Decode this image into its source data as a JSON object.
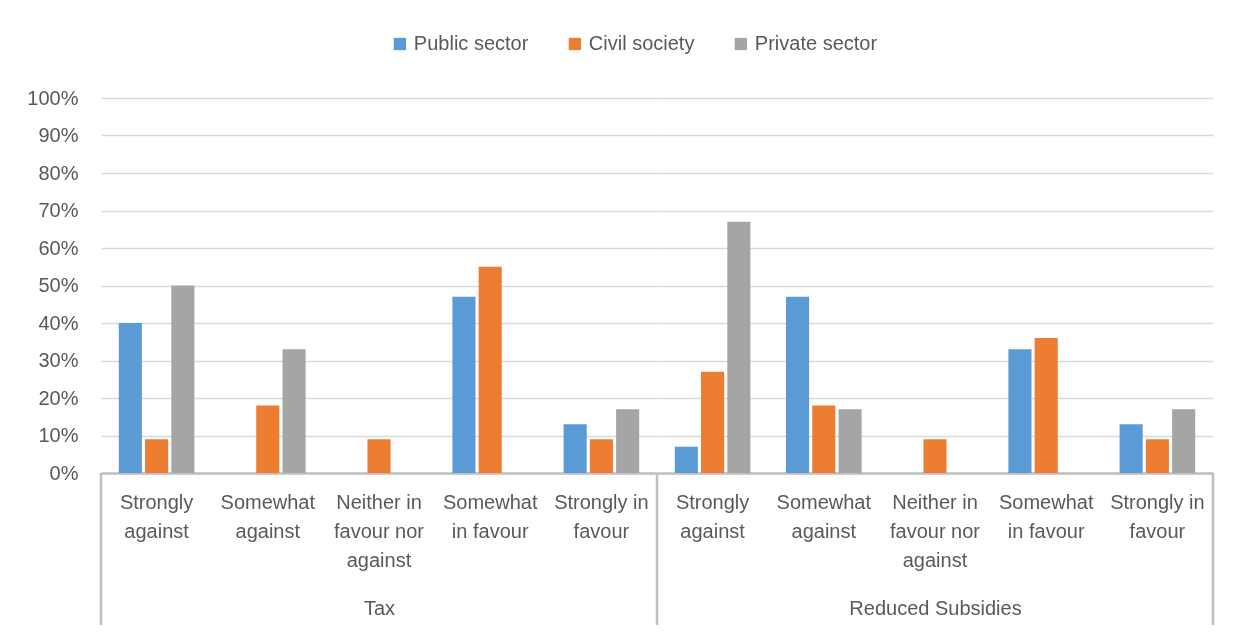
{
  "chart_data": [
    {
      "type": "bar",
      "categories": [
        "Strongly against",
        "Somewhat against",
        "Neither in favour nor against",
        "Somewhat in favour",
        "Strongly in favour"
      ],
      "xlabel": "Tax",
      "series": [
        {
          "name": "Public sector",
          "color": "#5b9bd5",
          "values": [
            40,
            null,
            null,
            47,
            13
          ]
        },
        {
          "name": "Civil society",
          "color": "#ed7d31",
          "values": [
            9,
            18,
            9,
            55,
            9
          ]
        },
        {
          "name": "Private sector",
          "color": "#a5a5a5",
          "values": [
            50,
            33,
            null,
            null,
            17
          ]
        }
      ],
      "ylim": [
        0,
        100
      ],
      "yticks": [
        {
          "value": 0,
          "label": "0%"
        },
        {
          "value": 10,
          "label": "10%"
        },
        {
          "value": 20,
          "label": "20%"
        },
        {
          "value": 30,
          "label": "30%"
        },
        {
          "value": 40,
          "label": "40%"
        },
        {
          "value": 50,
          "label": "50%"
        },
        {
          "value": 60,
          "label": "60%"
        },
        {
          "value": 70,
          "label": "70%"
        },
        {
          "value": 80,
          "label": "80%"
        },
        {
          "value": 90,
          "label": "90%"
        },
        {
          "value": 100,
          "label": "100%"
        }
      ],
      "grid": "y",
      "legend": "top"
    },
    {
      "type": "bar",
      "categories": [
        "Strongly against",
        "Somewhat against",
        "Neither in favour nor against",
        "Somewhat in favour",
        "Strongly in favour"
      ],
      "xlabel": "Reduced Subsidies",
      "series": [
        {
          "name": "Public sector",
          "color": "#5b9bd5",
          "values": [
            7,
            47,
            null,
            33,
            13
          ]
        },
        {
          "name": "Civil society",
          "color": "#ed7d31",
          "values": [
            27,
            18,
            9,
            36,
            9
          ]
        },
        {
          "name": "Private sector",
          "color": "#a5a5a5",
          "values": [
            67,
            17,
            null,
            null,
            17
          ]
        }
      ],
      "ylim": [
        0,
        100
      ],
      "yticks": [
        0,
        10,
        20,
        30,
        40,
        50,
        60,
        70,
        80,
        90,
        100
      ],
      "grid": "y",
      "tick_labels": "x",
      "legend": "top"
    }
  ]
}
